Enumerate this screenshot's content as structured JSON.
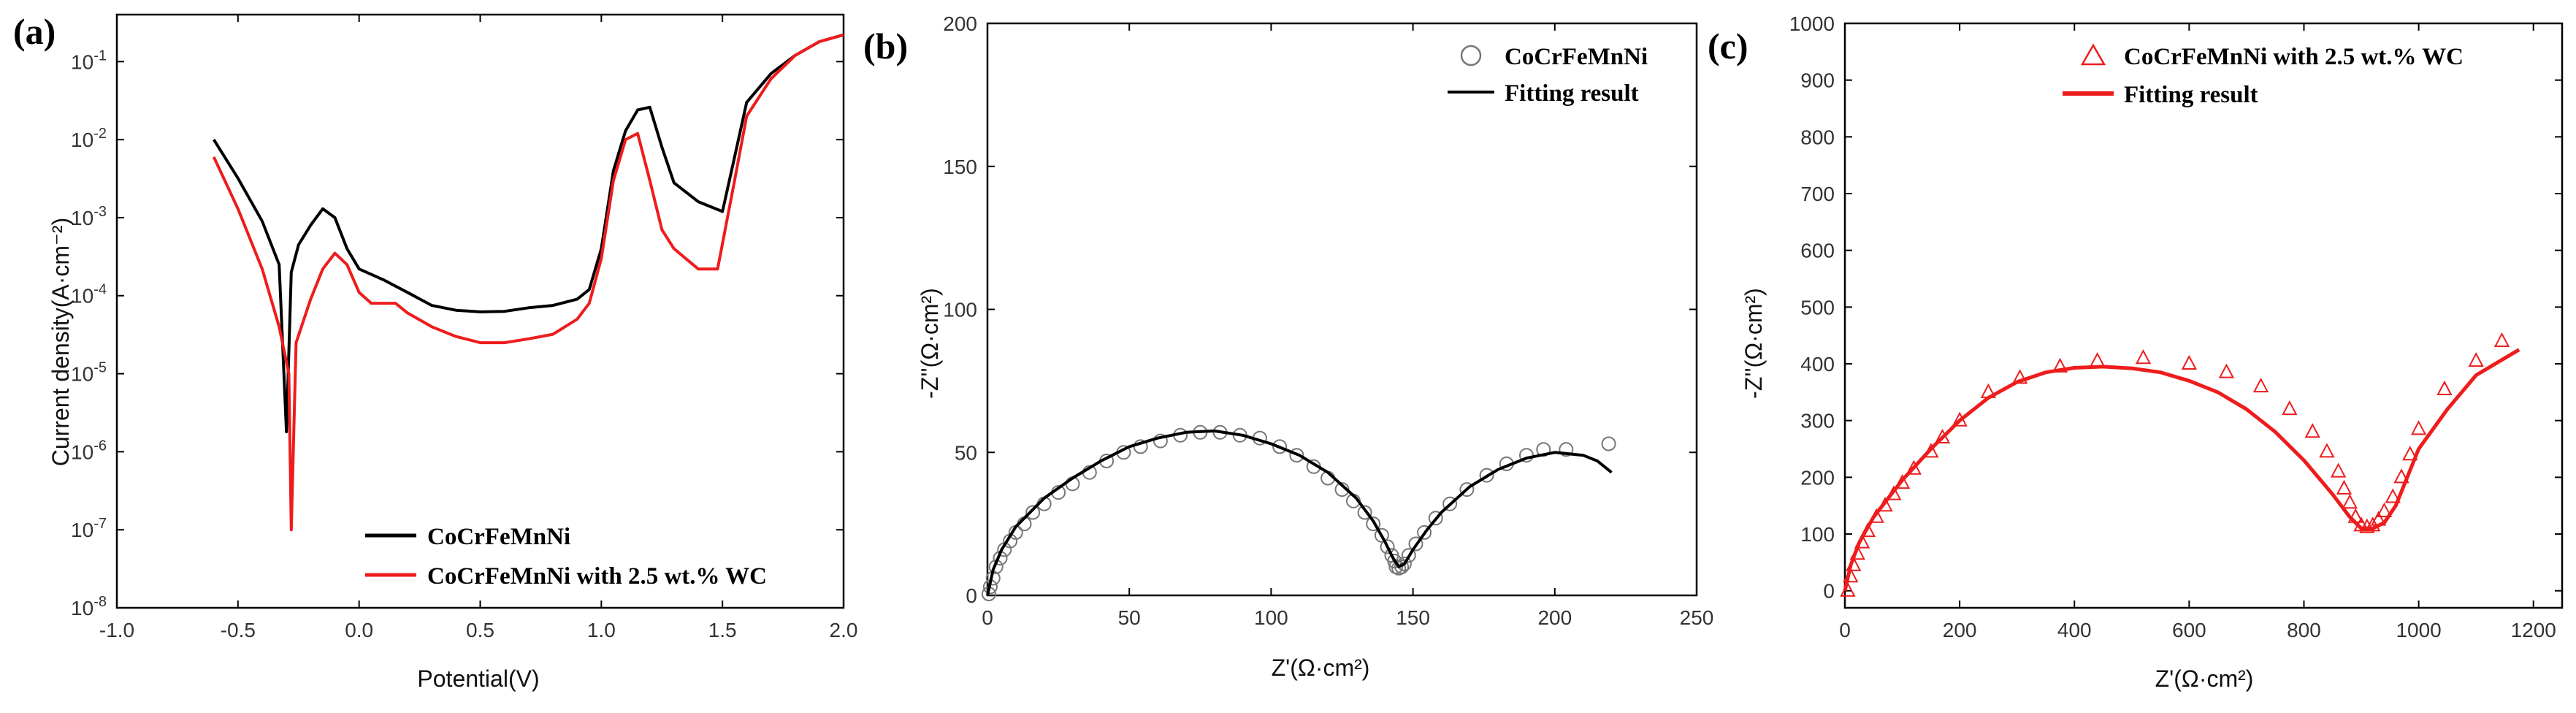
{
  "chart_data": [
    {
      "panel_label": "(a)",
      "type": "line",
      "xlabel": "Potential(V)",
      "ylabel": "Current density(A·cm⁻²)",
      "xlim": [
        -1.0,
        2.0
      ],
      "xticks": [
        "-1.0",
        "-0.5",
        "0.0",
        "0.5",
        "1.0",
        "1.5",
        "2.0"
      ],
      "ylim": [
        1e-08,
        0.4
      ],
      "yscale": "log",
      "yticks": [
        {
          "base": "10",
          "exp": "-1",
          "value": 0.1
        },
        {
          "base": "10",
          "exp": "-2",
          "value": 0.01
        },
        {
          "base": "10",
          "exp": "-3",
          "value": 0.001
        },
        {
          "base": "10",
          "exp": "-4",
          "value": 0.0001
        },
        {
          "base": "10",
          "exp": "-5",
          "value": 1e-05
        },
        {
          "base": "10",
          "exp": "-6",
          "value": 1e-06
        },
        {
          "base": "10",
          "exp": "-7",
          "value": 1e-07
        },
        {
          "base": "10",
          "exp": "-8",
          "value": 1e-08
        }
      ],
      "legend_position": "bottom-right",
      "series": [
        {
          "name": "CoCrFeMnNi",
          "color": "#000000",
          "points": [
            [
              -0.6,
              0.01
            ],
            [
              -0.5,
              0.0032
            ],
            [
              -0.4,
              0.0009
            ],
            [
              -0.33,
              0.00025
            ],
            [
              -0.3,
              1.8e-06
            ],
            [
              -0.28,
              0.0002
            ],
            [
              -0.25,
              0.00045
            ],
            [
              -0.2,
              0.0008
            ],
            [
              -0.15,
              0.0013
            ],
            [
              -0.1,
              0.001
            ],
            [
              -0.05,
              0.0004
            ],
            [
              0.0,
              0.00022
            ],
            [
              0.1,
              0.00016
            ],
            [
              0.2,
              0.00011
            ],
            [
              0.3,
              7.5e-05
            ],
            [
              0.4,
              6.5e-05
            ],
            [
              0.5,
              6.2e-05
            ],
            [
              0.6,
              6.3e-05
            ],
            [
              0.7,
              7e-05
            ],
            [
              0.8,
              7.5e-05
            ],
            [
              0.9,
              9e-05
            ],
            [
              0.95,
              0.00012
            ],
            [
              1.0,
              0.0004
            ],
            [
              1.05,
              0.004
            ],
            [
              1.1,
              0.013
            ],
            [
              1.15,
              0.024
            ],
            [
              1.2,
              0.026
            ],
            [
              1.25,
              0.008
            ],
            [
              1.3,
              0.0028
            ],
            [
              1.4,
              0.0016
            ],
            [
              1.5,
              0.0012
            ],
            [
              1.55,
              0.006
            ],
            [
              1.6,
              0.03
            ],
            [
              1.7,
              0.07
            ],
            [
              1.8,
              0.12
            ],
            [
              1.9,
              0.18
            ],
            [
              2.0,
              0.22
            ]
          ]
        },
        {
          "name": "CoCrFeMnNi with 2.5 wt.% WC",
          "color": "#ee1c1c",
          "points": [
            [
              -0.6,
              0.006
            ],
            [
              -0.5,
              0.0013
            ],
            [
              -0.4,
              0.00022
            ],
            [
              -0.33,
              4e-05
            ],
            [
              -0.29,
              1e-05
            ],
            [
              -0.28,
              1e-07
            ],
            [
              -0.26,
              2.5e-05
            ],
            [
              -0.2,
              9e-05
            ],
            [
              -0.15,
              0.00022
            ],
            [
              -0.1,
              0.00035
            ],
            [
              -0.05,
              0.00025
            ],
            [
              0.0,
              0.00011
            ],
            [
              0.05,
              8e-05
            ],
            [
              0.15,
              8e-05
            ],
            [
              0.2,
              6e-05
            ],
            [
              0.3,
              4e-05
            ],
            [
              0.4,
              3e-05
            ],
            [
              0.5,
              2.5e-05
            ],
            [
              0.6,
              2.5e-05
            ],
            [
              0.7,
              2.8e-05
            ],
            [
              0.8,
              3.2e-05
            ],
            [
              0.9,
              5e-05
            ],
            [
              0.95,
              8e-05
            ],
            [
              1.0,
              0.0003
            ],
            [
              1.05,
              0.003
            ],
            [
              1.1,
              0.01
            ],
            [
              1.15,
              0.012
            ],
            [
              1.2,
              0.003
            ],
            [
              1.25,
              0.0007
            ],
            [
              1.3,
              0.0004
            ],
            [
              1.4,
              0.00022
            ],
            [
              1.48,
              0.00022
            ],
            [
              1.55,
              0.003
            ],
            [
              1.6,
              0.02
            ],
            [
              1.7,
              0.06
            ],
            [
              1.8,
              0.12
            ],
            [
              1.9,
              0.18
            ],
            [
              2.0,
              0.22
            ]
          ]
        }
      ]
    },
    {
      "panel_label": "(b)",
      "type": "scatter",
      "xlabel": "Z'(Ω·cm²)",
      "ylabel": "-Z''(Ω·cm²)",
      "xlim": [
        0,
        250
      ],
      "xticks": [
        0,
        50,
        100,
        150,
        200,
        250
      ],
      "ylim": [
        0,
        200
      ],
      "yticks": [
        0,
        50,
        100,
        150,
        200
      ],
      "legend_position": "top-right",
      "series": [
        {
          "name": "CoCrFeMnNi",
          "marker": "open-circle",
          "color": "#777777",
          "points": [
            [
              0.5,
              0.5
            ],
            [
              1,
              3
            ],
            [
              2,
              6
            ],
            [
              3,
              10
            ],
            [
              4.5,
              13
            ],
            [
              6,
              16
            ],
            [
              8,
              19
            ],
            [
              10,
              22
            ],
            [
              13,
              25
            ],
            [
              16,
              29
            ],
            [
              20,
              32
            ],
            [
              25,
              36
            ],
            [
              30,
              39
            ],
            [
              36,
              43
            ],
            [
              42,
              47
            ],
            [
              48,
              50
            ],
            [
              54,
              52
            ],
            [
              61,
              54
            ],
            [
              68,
              56
            ],
            [
              75,
              57
            ],
            [
              82,
              57
            ],
            [
              89,
              56
            ],
            [
              96,
              55
            ],
            [
              103,
              52
            ],
            [
              109,
              49
            ],
            [
              115,
              45
            ],
            [
              120,
              41
            ],
            [
              125,
              37
            ],
            [
              129,
              33
            ],
            [
              133,
              29
            ],
            [
              136,
              25
            ],
            [
              139,
              21
            ],
            [
              141,
              17
            ],
            [
              142.5,
              14
            ],
            [
              143.5,
              12
            ],
            [
              144,
              10
            ],
            [
              145,
              9.5
            ],
            [
              146,
              10
            ],
            [
              147,
              11
            ],
            [
              148.5,
              14
            ],
            [
              151,
              18
            ],
            [
              154,
              22
            ],
            [
              158,
              27
            ],
            [
              163,
              32
            ],
            [
              169,
              37
            ],
            [
              176,
              42
            ],
            [
              183,
              46
            ],
            [
              190,
              49
            ],
            [
              196,
              51
            ],
            [
              204,
              51
            ],
            [
              219,
              53
            ]
          ]
        },
        {
          "name": "Fitting result",
          "line": "solid",
          "color": "#000000",
          "points": [
            [
              0,
              0
            ],
            [
              2,
              9
            ],
            [
              5,
              16
            ],
            [
              10,
              24
            ],
            [
              20,
              34
            ],
            [
              30,
              41
            ],
            [
              40,
              47
            ],
            [
              50,
              52
            ],
            [
              60,
              55
            ],
            [
              70,
              57
            ],
            [
              80,
              57.5
            ],
            [
              90,
              56
            ],
            [
              100,
              53
            ],
            [
              110,
              49
            ],
            [
              120,
              43
            ],
            [
              130,
              34
            ],
            [
              136,
              26
            ],
            [
              140,
              19
            ],
            [
              143,
              13
            ],
            [
              145,
              10
            ],
            [
              147,
              11
            ],
            [
              150,
              16
            ],
            [
              155,
              23
            ],
            [
              160,
              29
            ],
            [
              170,
              38
            ],
            [
              180,
              44
            ],
            [
              190,
              48
            ],
            [
              200,
              50
            ],
            [
              210,
              49
            ],
            [
              215,
              47
            ],
            [
              220,
              43
            ]
          ]
        }
      ]
    },
    {
      "panel_label": "(c)",
      "type": "scatter",
      "xlabel": "Z'(Ω·cm²)",
      "ylabel": "-Z''(Ω·cm²)",
      "xlim": [
        0,
        1250
      ],
      "xticks": [
        0,
        200,
        400,
        600,
        800,
        1000,
        1200
      ],
      "ylim": [
        -30,
        1000
      ],
      "yticks": [
        0,
        100,
        200,
        300,
        400,
        500,
        600,
        700,
        800,
        900,
        1000
      ],
      "legend_position": "top-left",
      "series": [
        {
          "name": "CoCrFeMnNi with 2.5 wt.% WC",
          "marker": "open-triangle",
          "color": "#ee1c1c",
          "points": [
            [
              5,
              0
            ],
            [
              10,
              25
            ],
            [
              15,
              45
            ],
            [
              22,
              65
            ],
            [
              30,
              85
            ],
            [
              40,
              105
            ],
            [
              55,
              130
            ],
            [
              70,
              150
            ],
            [
              85,
              170
            ],
            [
              100,
              190
            ],
            [
              120,
              215
            ],
            [
              150,
              245
            ],
            [
              170,
              270
            ],
            [
              200,
              300
            ],
            [
              250,
              350
            ],
            [
              305,
              375
            ],
            [
              375,
              395
            ],
            [
              440,
              405
            ],
            [
              520,
              410
            ],
            [
              600,
              400
            ],
            [
              665,
              385
            ],
            [
              725,
              360
            ],
            [
              775,
              320
            ],
            [
              815,
              280
            ],
            [
              840,
              245
            ],
            [
              860,
              210
            ],
            [
              870,
              180
            ],
            [
              880,
              155
            ],
            [
              890,
              130
            ],
            [
              900,
              115
            ],
            [
              910,
              112
            ],
            [
              920,
              115
            ],
            [
              930,
              125
            ],
            [
              940,
              140
            ],
            [
              955,
              165
            ],
            [
              970,
              200
            ],
            [
              985,
              240
            ],
            [
              1000,
              285
            ],
            [
              1045,
              355
            ],
            [
              1100,
              405
            ],
            [
              1145,
              440
            ]
          ]
        },
        {
          "name": "Fitting result",
          "line": "solid",
          "color": "#ee1c1c",
          "points": [
            [
              0,
              0
            ],
            [
              10,
              45
            ],
            [
              25,
              85
            ],
            [
              50,
              130
            ],
            [
              100,
              195
            ],
            [
              150,
              250
            ],
            [
              200,
              300
            ],
            [
              250,
              340
            ],
            [
              300,
              368
            ],
            [
              350,
              385
            ],
            [
              400,
              393
            ],
            [
              450,
              395
            ],
            [
              500,
              392
            ],
            [
              550,
              385
            ],
            [
              600,
              370
            ],
            [
              650,
              350
            ],
            [
              700,
              320
            ],
            [
              750,
              280
            ],
            [
              800,
              230
            ],
            [
              850,
              170
            ],
            [
              880,
              130
            ],
            [
              900,
              110
            ],
            [
              920,
              110
            ],
            [
              940,
              120
            ],
            [
              960,
              150
            ],
            [
              980,
              200
            ],
            [
              1000,
              250
            ],
            [
              1050,
              320
            ],
            [
              1100,
              380
            ],
            [
              1150,
              410
            ],
            [
              1175,
              425
            ]
          ]
        }
      ]
    }
  ]
}
